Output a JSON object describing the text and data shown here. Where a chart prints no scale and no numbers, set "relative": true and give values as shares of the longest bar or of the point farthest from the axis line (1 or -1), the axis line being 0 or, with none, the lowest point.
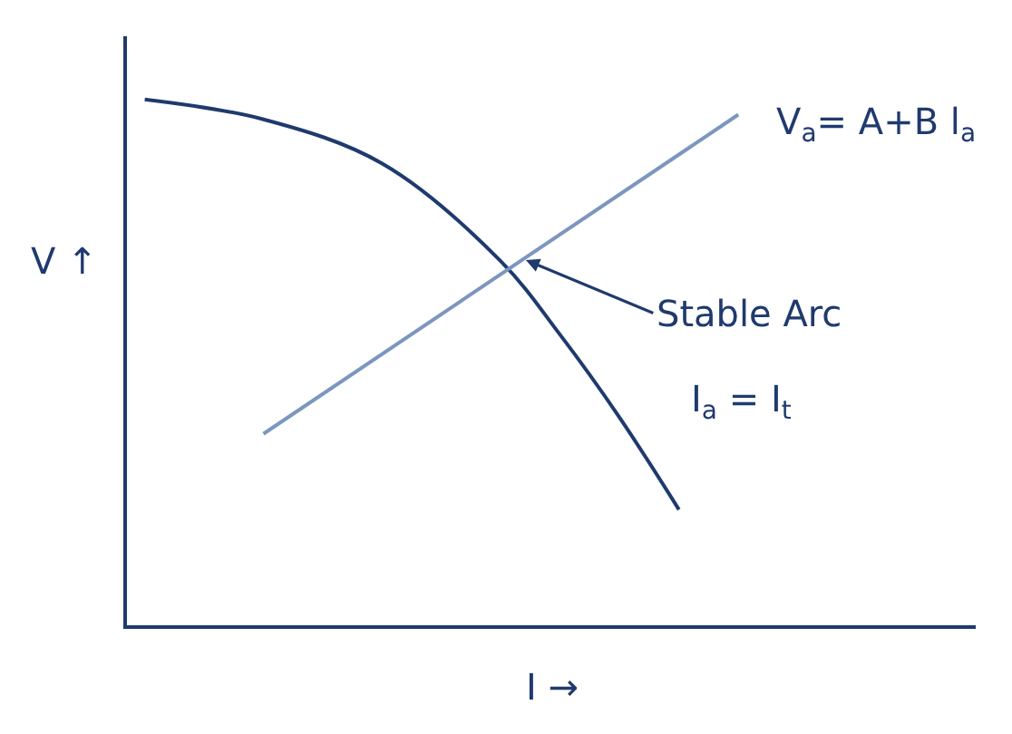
{
  "chart_data": {
    "type": "line",
    "relative": true,
    "xlabel": "I →",
    "ylabel": "V ↑",
    "categories": [
      null,
      null,
      null,
      null,
      null,
      null,
      null,
      null,
      null,
      null,
      null
    ],
    "series": [
      {
        "color": "#1f3a6e",
        "values": [
          1.0,
          null,
          0.962,
          null,
          0.878,
          null,
          0.692,
          0.552,
          0.395,
          0.22,
          null
        ]
      },
      {
        "color": "#7b96bf",
        "values": [
          null,
          null,
          0.364,
          null,
          null,
          null,
          null,
          null,
          null,
          null,
          0.971
        ]
      }
    ],
    "annotations": [
      "V$_{a}$= A+B l$_{a}$",
      "Stable Arc",
      "I$_{a}$ = I$_{t}$"
    ],
    "legend": false,
    "marker": "none",
    "line_style": "solid"
  }
}
